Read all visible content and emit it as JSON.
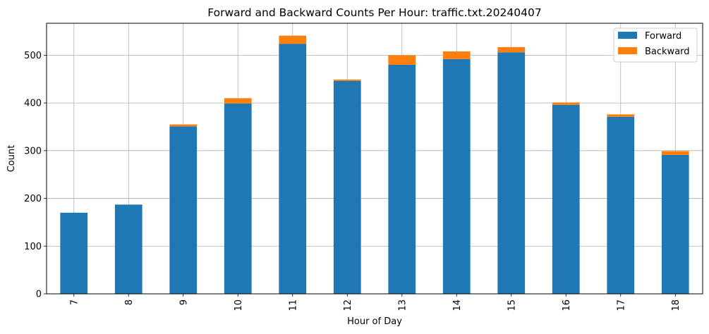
{
  "chart_data": {
    "type": "bar",
    "stacked": true,
    "title": "Forward and Backward Counts Per Hour: traffic.txt.20240407",
    "xlabel": "Hour of Day",
    "ylabel": "Count",
    "categories": [
      "7",
      "8",
      "9",
      "10",
      "11",
      "12",
      "13",
      "14",
      "15",
      "16",
      "17",
      "18"
    ],
    "series": [
      {
        "name": "Forward",
        "color": "#1f77b4",
        "values": [
          170,
          187,
          351,
          399,
          524,
          446,
          480,
          492,
          506,
          396,
          371,
          291
        ]
      },
      {
        "name": "Backward",
        "color": "#ff7f0e",
        "values": [
          0,
          0,
          4,
          11,
          17,
          3,
          20,
          16,
          11,
          5,
          5,
          8
        ]
      }
    ],
    "ylim": [
      0,
      567
    ],
    "yticks": [
      0,
      100,
      200,
      300,
      400,
      500
    ],
    "grid": true,
    "legend_position": "top-right"
  }
}
